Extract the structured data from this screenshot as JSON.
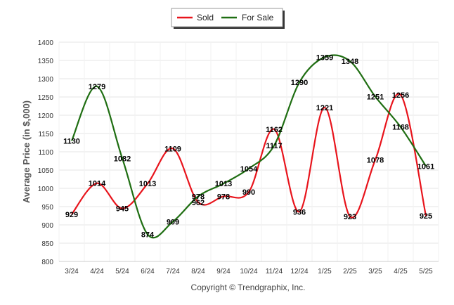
{
  "chart_data": {
    "type": "line",
    "categories": [
      "3/24",
      "4/24",
      "5/24",
      "6/24",
      "7/24",
      "8/24",
      "9/24",
      "10/24",
      "11/24",
      "12/24",
      "1/25",
      "2/25",
      "3/25",
      "4/25",
      "5/25"
    ],
    "series": [
      {
        "name": "Sold",
        "color": "#e8141c",
        "values": [
          929,
          1014,
          945,
          1013,
          1109,
          962,
          978,
          990,
          1162,
          936,
          1221,
          923,
          1078,
          1256,
          925
        ]
      },
      {
        "name": "For Sale",
        "color": "#1f6e12",
        "values": [
          1130,
          1279,
          1082,
          874,
          909,
          978,
          1013,
          1054,
          1117,
          1290,
          1359,
          1348,
          1251,
          1168,
          1061
        ]
      }
    ],
    "ylabel": "Average Price (in $,000)",
    "xlabel": "",
    "ylim": [
      800,
      1400
    ],
    "yticks": [
      800,
      850,
      900,
      950,
      1000,
      1050,
      1100,
      1150,
      1200,
      1250,
      1300,
      1350,
      1400
    ],
    "grid": true,
    "legend_position": "top-center",
    "footer": "Copyright © Trendgraphix, Inc."
  }
}
